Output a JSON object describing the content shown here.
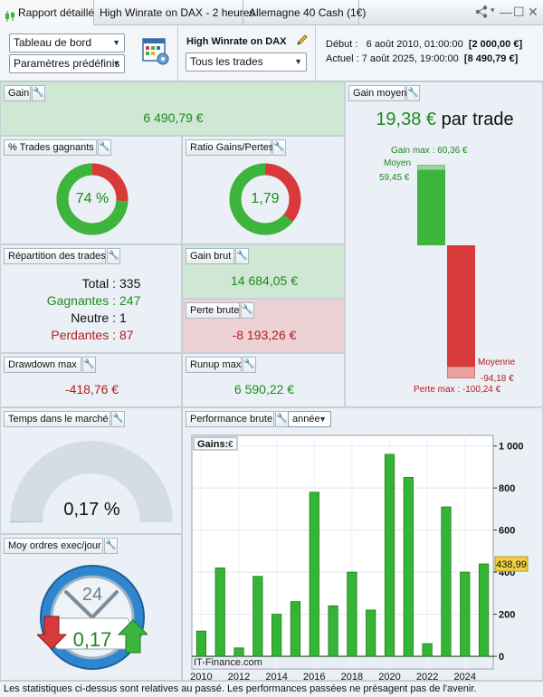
{
  "tabs": [
    {
      "label": "Rapport détaillé",
      "icon": "candlestick-icon"
    },
    {
      "label": "High Winrate on DAX - 2 heures"
    },
    {
      "label": "Allemagne 40 Cash (1€)"
    }
  ],
  "header": {
    "dashboard_select": "Tableau de bord",
    "presets_select": "Paramètres prédéfinis",
    "strategy_name": "High Winrate on DAX",
    "trades_filter": "Tous les trades",
    "start_label": "Début :",
    "start_date": "6 août 2010, 01:00:00",
    "start_value": "[2 000,00 €]",
    "current_label": "Actuel :",
    "current_date": "7 août 2025, 19:00:00",
    "current_value": "[8 490,79 €]"
  },
  "gain": {
    "title": "Gain",
    "value": "6 490,79 €"
  },
  "win_pct": {
    "title": "% Trades gagnants",
    "label": "74 %",
    "fraction": 0.74
  },
  "ratio": {
    "title": "Ratio Gains/Pertes",
    "label": "1,79",
    "fraction": 0.64
  },
  "gain_moyen": {
    "title": "Gain moyen",
    "value": "19,38 €",
    "suffix": "par trade",
    "gain_max_label": "Gain max : 60,36 €",
    "moyen_label": "Moyen",
    "moyen_value": "59,45 €",
    "moyenne_label": "Moyenne",
    "moyenne_value": "-94,18 €",
    "perte_max_label": "Perte max : -100,24 €",
    "gain_max": 60.36,
    "avg_gain": 59.45,
    "avg_loss": -94.18,
    "perte_max": -100.24
  },
  "repartition": {
    "title": "Répartition des trades",
    "total_label": "Total :",
    "total": "335",
    "win_label": "Gagnantes :",
    "win": "247",
    "neutral_label": "Neutre :",
    "neutral": "1",
    "loss_label": "Perdantes :",
    "loss": "87"
  },
  "gain_brut": {
    "title": "Gain brut",
    "value": "14 684,05 €"
  },
  "perte_brute": {
    "title": "Perte brute",
    "value": "-8 193,26 €"
  },
  "drawdown": {
    "title": "Drawdown max",
    "value": "-418,76 €"
  },
  "runup": {
    "title": "Runup max",
    "value": "6 590,22 €"
  },
  "temps": {
    "title": "Temps dans le marché",
    "value": "0,17 %",
    "fraction": 0.0017
  },
  "ordres": {
    "title": "Moy ordres exec/jour",
    "value": "0,17",
    "clock_value": "24"
  },
  "perf": {
    "title": "Performance brute",
    "period_select": "année",
    "series_label": "Gains:",
    "series_label_icon": "€",
    "watermark": "IT-Finance.com",
    "last_value_label": "438,99"
  },
  "chart_data": {
    "type": "bar",
    "series_name": "Gains",
    "x": [
      2010,
      2011,
      2012,
      2013,
      2014,
      2015,
      2016,
      2017,
      2018,
      2019,
      2020,
      2021,
      2022,
      2023,
      2024,
      2025
    ],
    "values": [
      120,
      420,
      40,
      380,
      200,
      260,
      780,
      240,
      400,
      220,
      960,
      850,
      60,
      710,
      400,
      439
    ],
    "x_tick_labels": [
      "2010",
      "2012",
      "2014",
      "2016",
      "2018",
      "2020",
      "2022",
      "2024"
    ],
    "y_tick_labels": [
      "1 000",
      "800",
      "600",
      "400",
      "200",
      "0"
    ],
    "y_ticks": [
      1000,
      800,
      600,
      400,
      200,
      0
    ],
    "ylim": [
      -60,
      1050
    ],
    "grid": true,
    "colors": {
      "bar": "#35b535",
      "bar_edge": "#1f7a1f",
      "last_value_bg": "#f0d040"
    }
  },
  "colors": {
    "green_bg": "#cfe8d3",
    "red_bg": "#ecd2d4",
    "green": "#3bb53b",
    "red": "#d83a3a",
    "gauge_grey": "#d5dde4"
  },
  "footer": "Les statistiques ci-dessus sont relatives au passé. Les performances passées ne présagent pas de l'avenir."
}
